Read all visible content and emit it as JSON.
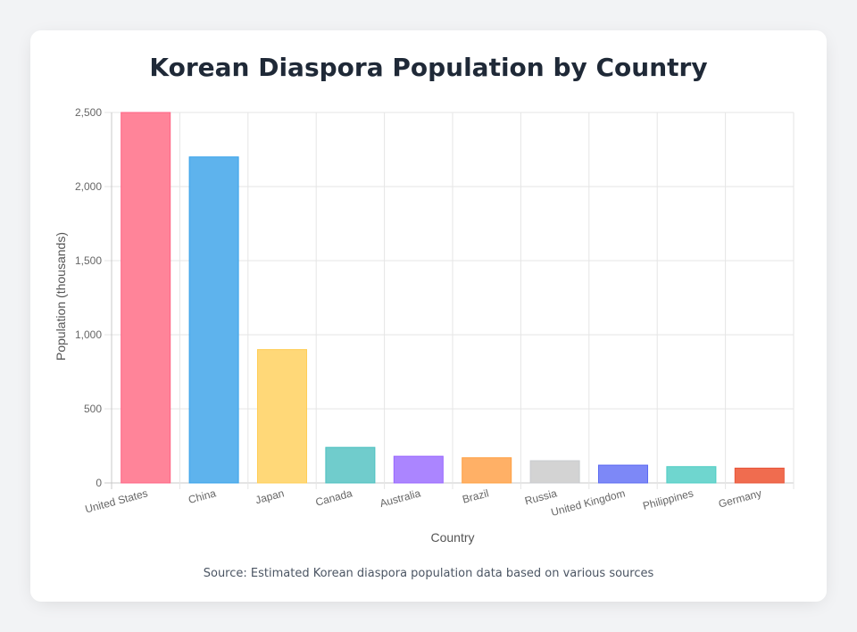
{
  "title": "Korean Diaspora Population by Country",
  "source": "Source: Estimated Korean diaspora population data based on various sources",
  "chart_data": {
    "type": "bar",
    "title": "Korean Diaspora Population by Country",
    "xlabel": "Country",
    "ylabel": "Population (thousands)",
    "ylim": [
      0,
      2500
    ],
    "yticks": [
      0,
      500,
      1000,
      1500,
      2000,
      2500
    ],
    "ytick_labels": [
      "0",
      "500",
      "1,000",
      "1,500",
      "2,000",
      "2,500"
    ],
    "grid": true,
    "legend": "none",
    "categories": [
      "United States",
      "China",
      "Japan",
      "Canada",
      "Australia",
      "Brazil",
      "Russia",
      "United Kingdom",
      "Philippines",
      "Germany"
    ],
    "values": [
      2500,
      2200,
      900,
      240,
      180,
      170,
      150,
      120,
      110,
      100
    ],
    "colors": [
      {
        "fill": "#ff8499",
        "stroke": "#ff6384"
      },
      {
        "fill": "#5eb3ed",
        "stroke": "#36a2eb"
      },
      {
        "fill": "#ffd878",
        "stroke": "#ffce56"
      },
      {
        "fill": "#70cccc",
        "stroke": "#4bc0c0"
      },
      {
        "fill": "#ab85ff",
        "stroke": "#9966ff"
      },
      {
        "fill": "#ffb066",
        "stroke": "#ff9f40"
      },
      {
        "fill": "#d3d3d3",
        "stroke": "#c9cbcf"
      },
      {
        "fill": "#7d88f7",
        "stroke": "#5c6bf2"
      },
      {
        "fill": "#6fd6cf",
        "stroke": "#4ecdc4"
      },
      {
        "fill": "#f06c4f",
        "stroke": "#e8553a"
      }
    ]
  }
}
